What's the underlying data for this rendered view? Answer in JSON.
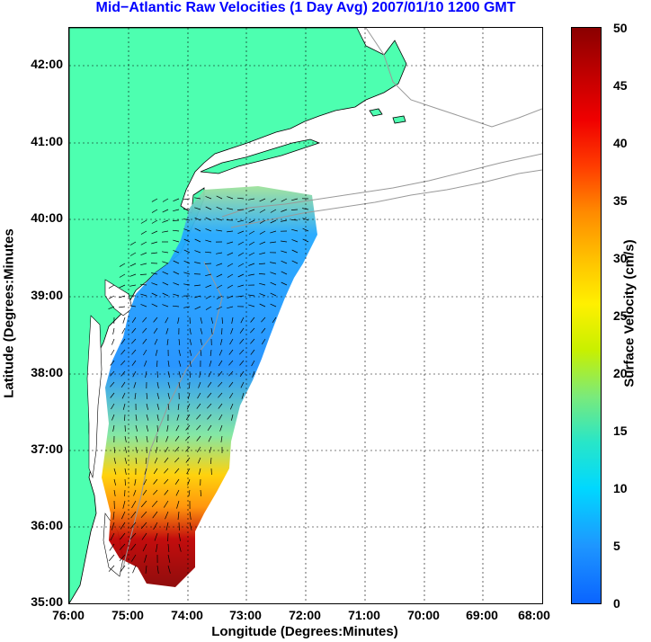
{
  "title": "Mid−Atlantic Raw Velocities (1 Day Avg) 2007/01/10 1200 GMT",
  "x_axis": {
    "label": "Longitude (Degrees:Minutes)",
    "ticks": [
      "76:00",
      "75:00",
      "74:00",
      "73:00",
      "72:00",
      "71:00",
      "70:00",
      "69:00",
      "68:00"
    ]
  },
  "y_axis": {
    "label": "Latitude (Degrees:Minutes",
    "ticks": [
      "35:00",
      "36:00",
      "37:00",
      "38:00",
      "39:00",
      "40:00",
      "41:00",
      "42:00"
    ]
  },
  "colorbar": {
    "label": "Surface Velocity (cm/s)",
    "ticks": [
      "0",
      "5",
      "10",
      "15",
      "20",
      "25",
      "30",
      "35",
      "40",
      "45",
      "50"
    ],
    "range": [
      0,
      50
    ]
  },
  "colors": {
    "land": "#4dffb0",
    "coast": "#000000",
    "bathymetry": "#999999",
    "grid": "#000000",
    "title": "#0000ff"
  }
}
